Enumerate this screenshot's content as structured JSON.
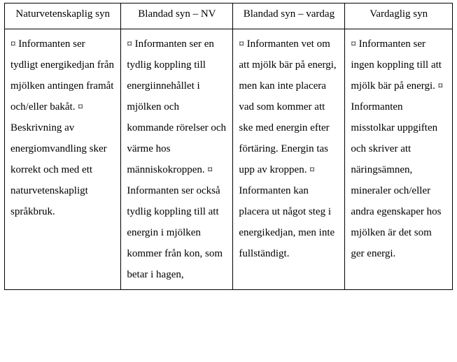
{
  "table": {
    "columns": [
      {
        "header": "Naturvetenskaplig syn"
      },
      {
        "header": "Blandad syn – NV"
      },
      {
        "header": "Blandad syn – vardag"
      },
      {
        "header": "Vardaglig syn"
      }
    ],
    "cells": {
      "c1": "¤ Informanten ser tydligt energikedjan från mjölken antingen framåt och/eller bakåt. ¤ Beskrivning av energiomvandling sker korrekt och med ett naturvetenskapligt språkbruk.",
      "c2": "¤ Informanten ser en tydlig koppling till energiinnehållet i mjölken och kommande rörelser och värme hos människokroppen. ¤ Informanten ser också tydlig koppling till att energin i mjölken kommer från kon, som betar i hagen,",
      "c3": "¤ Informanten vet om att mjölk bär på energi, men kan inte placera vad som kommer att ske med energin efter förtäring. Energin tas upp av kroppen. ¤ Informanten kan placera ut något steg i energikedjan, men inte fullständigt.",
      "c4": "¤ Informanten ser ingen koppling till att mjölk bär på energi. ¤ Informanten misstolkar uppgiften och skriver att näringsämnen, mineraler och/eller andra egenskaper hos mjölken är det som ger energi."
    }
  },
  "style": {
    "font_family": "Times New Roman",
    "body_fontsize_pt": 11,
    "header_fontsize_pt": 11,
    "line_height": 2.0,
    "border_color": "#000000",
    "background_color": "#ffffff",
    "text_color": "#000000",
    "column_widths_pct": [
      26,
      25,
      25,
      24
    ]
  }
}
